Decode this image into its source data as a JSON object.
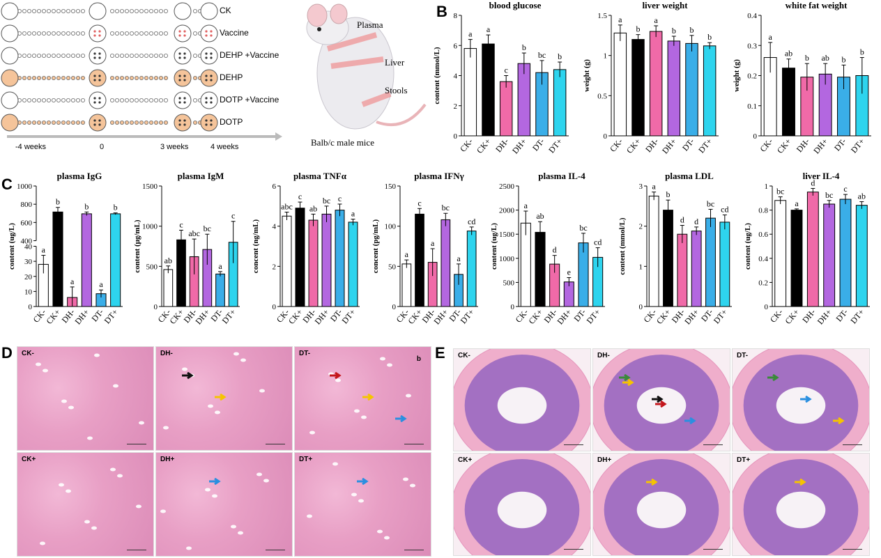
{
  "panel_labels": {
    "a": "A",
    "b": "B",
    "c": "C",
    "d": "D",
    "e": "E"
  },
  "panel_a": {
    "groups": [
      "CK",
      "Vaccine",
      "DEHP +Vaccine",
      "DEHP",
      "DOTP +Vaccine",
      "DOTP"
    ],
    "timeline": [
      "-4 weeks",
      "0",
      "3 weeks",
      "4 weeks"
    ],
    "mouse_labels": {
      "plasma": "Plasma",
      "liver": "Liver",
      "stools": "Stools",
      "caption": "Balb/c male mice"
    },
    "colors": {
      "orange": "#f5c49a",
      "white": "#ffffff",
      "arrow": "#bbbbbb"
    }
  },
  "colors": {
    "CK-": "#ffffff",
    "CK+": "#000000",
    "DH-": "#f06aa8",
    "DH+": "#b367e0",
    "DT-": "#3aaee8",
    "DT+": "#2ed4ee"
  },
  "chart_data": [
    {
      "id": "blood_glucose",
      "type": "bar",
      "title": "blood glucose",
      "ylabel": "content (mmol/L)",
      "ylim": [
        0,
        8
      ],
      "yticks": [
        0,
        2,
        4,
        6,
        8
      ],
      "categories": [
        "CK-",
        "CK+",
        "DH-",
        "DH+",
        "DT-",
        "DT+"
      ],
      "values": [
        5.8,
        6.1,
        3.6,
        4.8,
        4.2,
        4.4
      ],
      "errors": [
        0.6,
        0.6,
        0.4,
        0.7,
        0.8,
        0.5
      ],
      "letters": [
        "a",
        "a",
        "c",
        "b",
        "bc",
        "b"
      ]
    },
    {
      "id": "liver_weight",
      "type": "bar",
      "title": "liver weight",
      "ylabel": "weight (g)",
      "ylim": [
        0,
        1.5
      ],
      "yticks": [
        0.0,
        0.5,
        1.0,
        1.5
      ],
      "categories": [
        "CK-",
        "CK+",
        "DH-",
        "DH+",
        "DT-",
        "DT+"
      ],
      "values": [
        1.28,
        1.2,
        1.3,
        1.18,
        1.15,
        1.12
      ],
      "errors": [
        0.1,
        0.06,
        0.07,
        0.06,
        0.1,
        0.04
      ],
      "letters": [
        "a",
        "b",
        "a",
        "b",
        "b",
        "b"
      ]
    },
    {
      "id": "white_fat_weight",
      "type": "bar",
      "title": "white fat weight",
      "ylabel": "weight (g)",
      "ylim": [
        0,
        0.4
      ],
      "yticks": [
        0.0,
        0.1,
        0.2,
        0.3,
        0.4
      ],
      "categories": [
        "CK-",
        "CK+",
        "DH-",
        "DH+",
        "DT-",
        "DT+"
      ],
      "values": [
        0.26,
        0.225,
        0.195,
        0.205,
        0.195,
        0.2
      ],
      "errors": [
        0.05,
        0.03,
        0.045,
        0.035,
        0.04,
        0.06
      ],
      "letters": [
        "a",
        "ab",
        "b",
        "ab",
        "b",
        "b"
      ]
    },
    {
      "id": "plasma_igg",
      "type": "bar",
      "title": "plasma IgG",
      "ylabel": "content (ug/L)",
      "broken_axis": true,
      "lower_ticks": [
        0,
        10,
        20,
        30,
        40
      ],
      "upper_ticks": [
        400,
        600,
        800,
        1000
      ],
      "categories": [
        "CK-",
        "CK+",
        "DH-",
        "DH+",
        "DT-",
        "DT+"
      ],
      "values": [
        28,
        715,
        6,
        695,
        8.5,
        695
      ],
      "errors": [
        6,
        50,
        7,
        20,
        2.5,
        10
      ],
      "letters": [
        "a",
        "b",
        "a",
        "b",
        "a",
        "b"
      ]
    },
    {
      "id": "plasma_igm",
      "type": "bar",
      "title": "plasma IgM",
      "ylabel": "content (μg/mL)",
      "ylim": [
        0,
        1500
      ],
      "yticks": [
        0,
        500,
        1000,
        1500
      ],
      "categories": [
        "CK-",
        "CK+",
        "DH-",
        "DH+",
        "DT-",
        "DT+"
      ],
      "values": [
        460,
        830,
        620,
        710,
        405,
        800
      ],
      "errors": [
        45,
        120,
        220,
        190,
        30,
        260
      ],
      "letters": [
        "ab",
        "c",
        "abc",
        "bc",
        "a",
        "c"
      ]
    },
    {
      "id": "plasma_tnfa",
      "type": "bar",
      "title": "plasma TNFα",
      "ylabel": "concent (ng/mL)",
      "ylim": [
        0,
        6
      ],
      "yticks": [
        0,
        2,
        4,
        6
      ],
      "categories": [
        "CK-",
        "CK+",
        "DH-",
        "DH+",
        "DT-",
        "DT+"
      ],
      "values": [
        4.5,
        4.9,
        4.3,
        4.6,
        4.8,
        4.2
      ],
      "errors": [
        0.2,
        0.3,
        0.3,
        0.4,
        0.3,
        0.15
      ],
      "letters": [
        "abc",
        "c",
        "ab",
        "bc",
        "c",
        "a"
      ]
    },
    {
      "id": "plasma_ifng",
      "type": "bar",
      "title": "plasma IFNγ",
      "ylabel": "concent (pg/mL)",
      "ylim": [
        0,
        150
      ],
      "yticks": [
        0,
        50,
        100,
        150
      ],
      "categories": [
        "CK-",
        "CK+",
        "DH-",
        "DH+",
        "DT-",
        "DT+"
      ],
      "values": [
        53,
        115,
        55,
        108,
        40,
        94
      ],
      "errors": [
        5,
        7,
        17,
        8,
        13,
        5
      ],
      "letters": [
        "a",
        "c",
        "a",
        "bc",
        "a",
        "cd"
      ]
    },
    {
      "id": "plasma_il4",
      "type": "bar",
      "title": "plasma IL-4",
      "ylabel": "content (ug/L)",
      "ylim": [
        0,
        2500
      ],
      "yticks": [
        0,
        500,
        1000,
        1500,
        2000,
        2500
      ],
      "categories": [
        "CK-",
        "CK+",
        "DH-",
        "DH+",
        "DT-",
        "DT+"
      ],
      "values": [
        1730,
        1540,
        880,
        510,
        1320,
        1020
      ],
      "errors": [
        250,
        220,
        180,
        90,
        200,
        200
      ],
      "letters": [
        "a",
        "ab",
        "d",
        "e",
        "bc",
        "cd"
      ]
    },
    {
      "id": "plasma_ldl",
      "type": "bar",
      "title": "plasma LDL",
      "ylabel": "content (mmol/L)",
      "ylim": [
        0,
        3
      ],
      "yticks": [
        0,
        1,
        2,
        3
      ],
      "categories": [
        "CK-",
        "CK+",
        "DH-",
        "DH+",
        "DT-",
        "DT+"
      ],
      "values": [
        2.75,
        2.4,
        1.8,
        1.88,
        2.2,
        2.1
      ],
      "errors": [
        0.1,
        0.25,
        0.22,
        0.1,
        0.22,
        0.18
      ],
      "letters": [
        "a",
        "b",
        "d",
        "d",
        "bc",
        "cd"
      ]
    },
    {
      "id": "liver_il4",
      "type": "bar",
      "title": "liver IL-4",
      "ylabel": "content (ug/L)",
      "ylim": [
        0,
        1.0
      ],
      "yticks": [
        0.0,
        0.2,
        0.4,
        0.6,
        0.8,
        1.0
      ],
      "categories": [
        "CK-",
        "CK+",
        "DH-",
        "DH+",
        "DT-",
        "DT+"
      ],
      "values": [
        0.88,
        0.8,
        0.95,
        0.85,
        0.89,
        0.84
      ],
      "errors": [
        0.03,
        0.01,
        0.03,
        0.03,
        0.04,
        0.03
      ],
      "letters": [
        "bc",
        "a",
        "d",
        "bc",
        "c",
        "ab"
      ]
    }
  ],
  "panel_d": {
    "tiles": [
      {
        "tag": "CK-",
        "arrows": []
      },
      {
        "tag": "DH-",
        "arrows": [
          "black",
          "yellow"
        ]
      },
      {
        "tag": "DT-",
        "corner": "b",
        "arrows": [
          "red",
          "yellow",
          "blue"
        ]
      },
      {
        "tag": "CK+",
        "arrows": []
      },
      {
        "tag": "DH+",
        "arrows": [
          "blue"
        ]
      },
      {
        "tag": "DT+",
        "arrows": [
          "blue"
        ]
      }
    ]
  },
  "panel_e": {
    "tiles": [
      {
        "tag": "CK-",
        "arrows": []
      },
      {
        "tag": "DH-",
        "arrows": [
          "green",
          "black",
          "blue",
          "yellow",
          "red"
        ]
      },
      {
        "tag": "DT-",
        "arrows": [
          "green",
          "blue",
          "yellow"
        ]
      },
      {
        "tag": "CK+",
        "arrows": []
      },
      {
        "tag": "DH+",
        "arrows": [
          "yellow"
        ]
      },
      {
        "tag": "DT+",
        "arrows": [
          "yellow"
        ]
      }
    ]
  }
}
